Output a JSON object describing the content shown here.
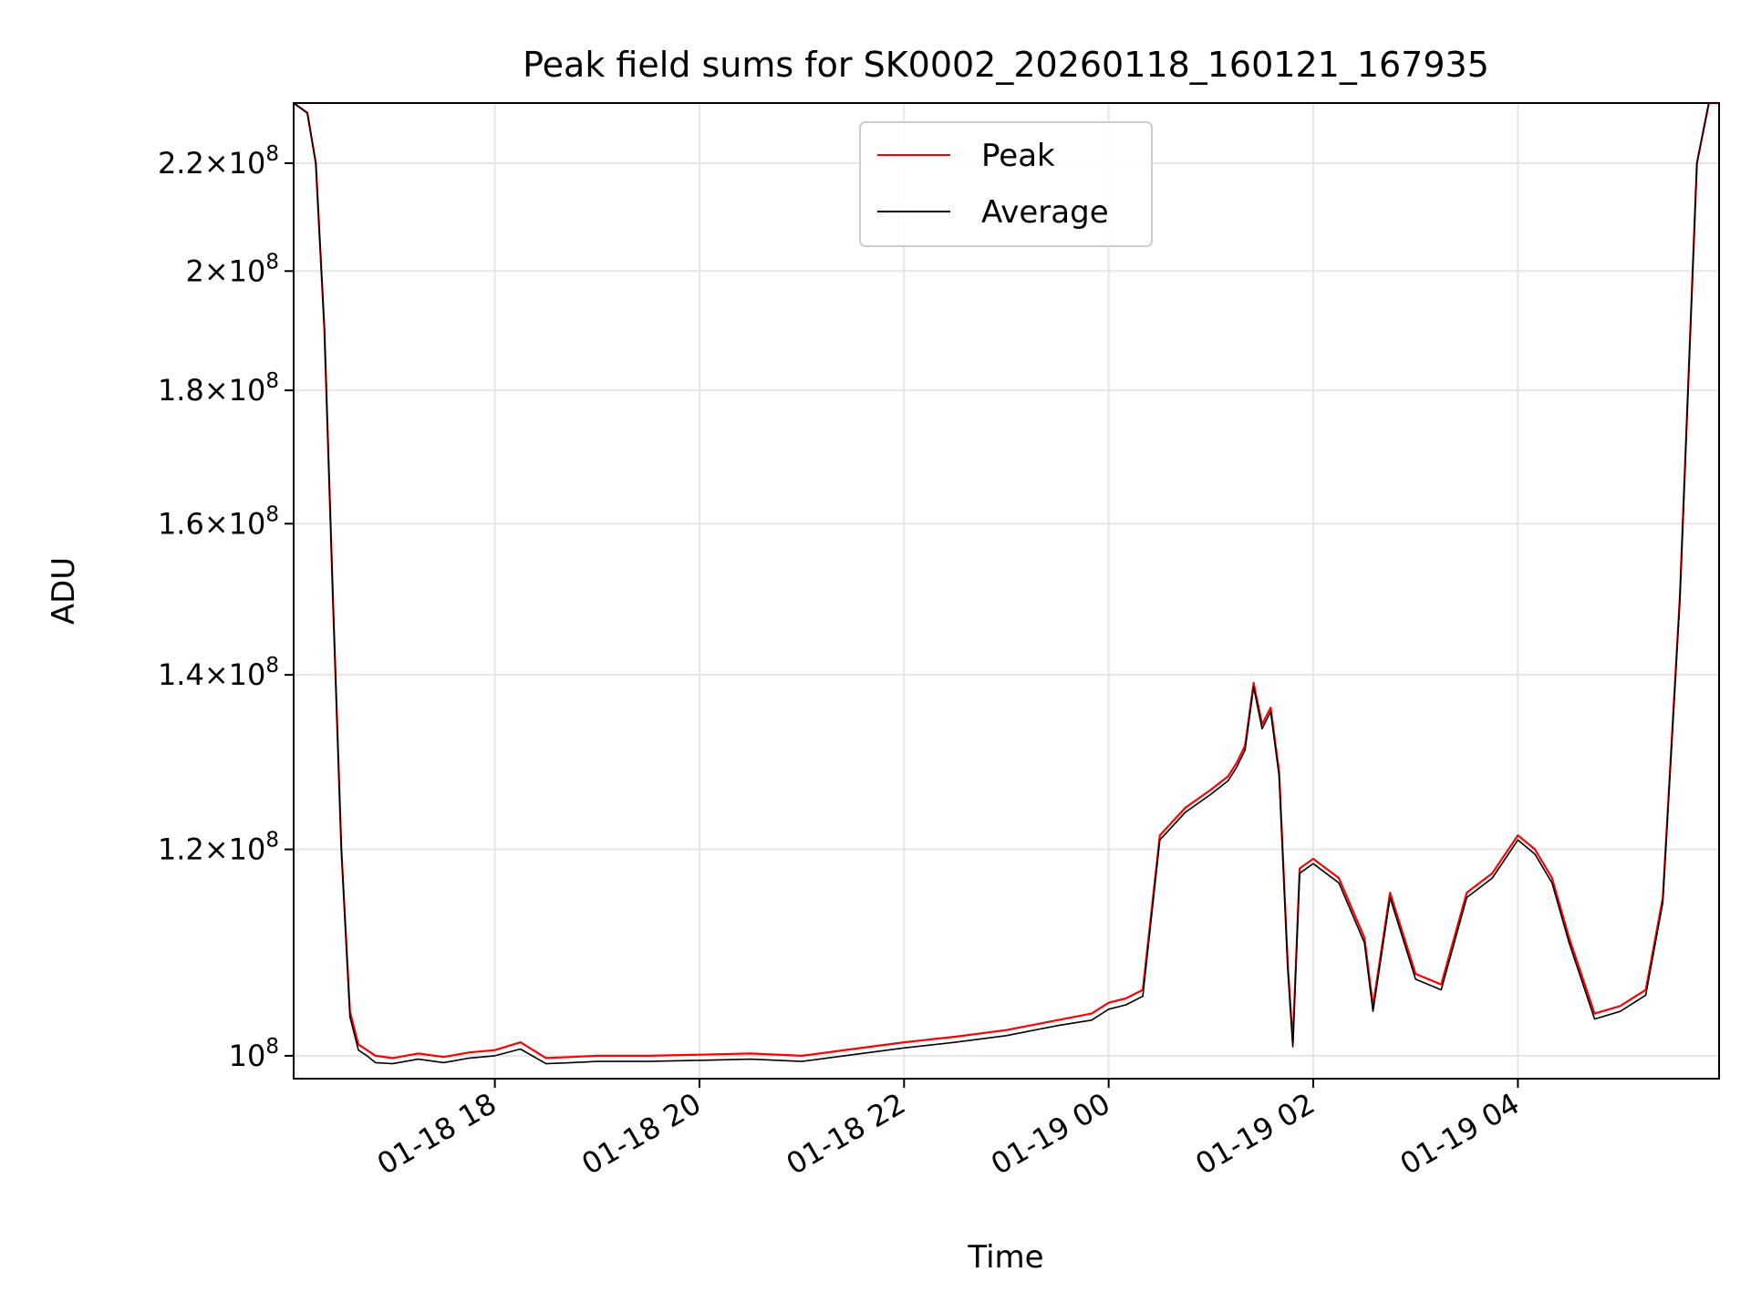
{
  "chart_data": {
    "type": "line",
    "title": "Peak field sums for SK0002_20260118_160121_167935",
    "xlabel": "Time",
    "ylabel": "ADU",
    "y_scale": "log",
    "xlim": [
      "2026-01-18 16:02",
      "2026-01-19 05:58"
    ],
    "ylim": [
      98000000,
      232000000
    ],
    "grid": true,
    "legend_position": "top-center",
    "x_ticks": [
      {
        "t": "2026-01-18 18:00",
        "label": "01-18 18"
      },
      {
        "t": "2026-01-18 20:00",
        "label": "01-18 20"
      },
      {
        "t": "2026-01-18 22:00",
        "label": "01-18 22"
      },
      {
        "t": "2026-01-19 00:00",
        "label": "01-19 00"
      },
      {
        "t": "2026-01-19 02:00",
        "label": "01-19 02"
      },
      {
        "t": "2026-01-19 04:00",
        "label": "01-19 04"
      }
    ],
    "y_ticks": [
      {
        "value": 100000000,
        "mantissa": "",
        "exp": "8"
      },
      {
        "value": 120000000,
        "mantissa": "1.2",
        "exp": "8"
      },
      {
        "value": 140000000,
        "mantissa": "1.4",
        "exp": "8"
      },
      {
        "value": 160000000,
        "mantissa": "1.6",
        "exp": "8"
      },
      {
        "value": 180000000,
        "mantissa": "1.8",
        "exp": "8"
      },
      {
        "value": 200000000,
        "mantissa": "2",
        "exp": "8"
      },
      {
        "value": 220000000,
        "mantissa": "2.2",
        "exp": "8"
      }
    ],
    "series": [
      {
        "name": "Peak",
        "color": "#ff0000",
        "x": [
          "2026-01-18 16:02",
          "2026-01-18 16:10",
          "2026-01-18 16:15",
          "2026-01-18 16:20",
          "2026-01-18 16:25",
          "2026-01-18 16:30",
          "2026-01-18 16:35",
          "2026-01-18 16:40",
          "2026-01-18 16:45",
          "2026-01-18 16:50",
          "2026-01-18 17:00",
          "2026-01-18 17:15",
          "2026-01-18 17:30",
          "2026-01-18 17:45",
          "2026-01-18 18:00",
          "2026-01-18 18:15",
          "2026-01-18 18:30",
          "2026-01-18 18:45",
          "2026-01-18 19:00",
          "2026-01-18 19:30",
          "2026-01-18 20:00",
          "2026-01-18 20:30",
          "2026-01-18 21:00",
          "2026-01-18 21:30",
          "2026-01-18 22:00",
          "2026-01-18 22:30",
          "2026-01-18 23:00",
          "2026-01-18 23:30",
          "2026-01-18 23:50",
          "2026-01-19 00:00",
          "2026-01-19 00:10",
          "2026-01-19 00:20",
          "2026-01-19 00:30",
          "2026-01-19 00:45",
          "2026-01-19 01:00",
          "2026-01-19 01:10",
          "2026-01-19 01:15",
          "2026-01-19 01:20",
          "2026-01-19 01:25",
          "2026-01-19 01:30",
          "2026-01-19 01:35",
          "2026-01-19 01:40",
          "2026-01-19 01:45",
          "2026-01-19 01:48",
          "2026-01-19 01:52",
          "2026-01-19 02:00",
          "2026-01-19 02:15",
          "2026-01-19 02:30",
          "2026-01-19 02:35",
          "2026-01-19 02:45",
          "2026-01-19 03:00",
          "2026-01-19 03:15",
          "2026-01-19 03:30",
          "2026-01-19 03:45",
          "2026-01-19 04:00",
          "2026-01-19 04:10",
          "2026-01-19 04:20",
          "2026-01-19 04:30",
          "2026-01-19 04:45",
          "2026-01-19 05:00",
          "2026-01-19 05:15",
          "2026-01-19 05:25",
          "2026-01-19 05:35",
          "2026-01-19 05:45",
          "2026-01-19 05:52",
          "2026-01-19 05:58"
        ],
        "values": [
          232000000,
          230000000,
          220000000,
          190000000,
          150000000,
          120000000,
          104000000,
          101000000,
          100500000,
          100000000,
          99800000,
          100200000,
          99900000,
          100300000,
          100500000,
          101200000,
          99800000,
          99900000,
          100000000,
          100000000,
          100100000,
          100200000,
          100000000,
          100600000,
          101200000,
          101700000,
          102300000,
          103200000,
          103800000,
          104800000,
          105200000,
          106000000,
          121500000,
          124500000,
          126500000,
          128000000,
          129500000,
          131500000,
          139000000,
          134000000,
          136000000,
          128500000,
          108500000,
          101200000,
          118000000,
          119000000,
          117000000,
          111000000,
          104500000,
          115500000,
          107500000,
          106500000,
          115500000,
          117500000,
          121500000,
          120000000,
          117000000,
          111000000,
          103800000,
          104500000,
          106000000,
          115000000,
          150000000,
          220000000,
          232000000,
          232000000
        ]
      },
      {
        "name": "Average",
        "color": "#000000",
        "x": [
          "2026-01-18 16:02",
          "2026-01-18 16:10",
          "2026-01-18 16:15",
          "2026-01-18 16:20",
          "2026-01-18 16:25",
          "2026-01-18 16:30",
          "2026-01-18 16:35",
          "2026-01-18 16:40",
          "2026-01-18 16:45",
          "2026-01-18 16:50",
          "2026-01-18 17:00",
          "2026-01-18 17:15",
          "2026-01-18 17:30",
          "2026-01-18 17:45",
          "2026-01-18 18:00",
          "2026-01-18 18:15",
          "2026-01-18 18:30",
          "2026-01-18 18:45",
          "2026-01-18 19:00",
          "2026-01-18 19:30",
          "2026-01-18 20:00",
          "2026-01-18 20:30",
          "2026-01-18 21:00",
          "2026-01-18 21:30",
          "2026-01-18 22:00",
          "2026-01-18 22:30",
          "2026-01-18 23:00",
          "2026-01-18 23:30",
          "2026-01-18 23:50",
          "2026-01-19 00:00",
          "2026-01-19 00:10",
          "2026-01-19 00:20",
          "2026-01-19 00:30",
          "2026-01-19 00:45",
          "2026-01-19 01:00",
          "2026-01-19 01:10",
          "2026-01-19 01:15",
          "2026-01-19 01:20",
          "2026-01-19 01:25",
          "2026-01-19 01:30",
          "2026-01-19 01:35",
          "2026-01-19 01:40",
          "2026-01-19 01:45",
          "2026-01-19 01:48",
          "2026-01-19 01:52",
          "2026-01-19 02:00",
          "2026-01-19 02:15",
          "2026-01-19 02:30",
          "2026-01-19 02:35",
          "2026-01-19 02:45",
          "2026-01-19 03:00",
          "2026-01-19 03:15",
          "2026-01-19 03:30",
          "2026-01-19 03:45",
          "2026-01-19 04:00",
          "2026-01-19 04:10",
          "2026-01-19 04:20",
          "2026-01-19 04:30",
          "2026-01-19 04:45",
          "2026-01-19 05:00",
          "2026-01-19 05:15",
          "2026-01-19 05:25",
          "2026-01-19 05:35",
          "2026-01-19 05:45",
          "2026-01-19 05:52",
          "2026-01-19 05:58"
        ],
        "values": [
          232000000,
          230000000,
          220000000,
          190000000,
          150000000,
          120000000,
          103500000,
          100500000,
          100000000,
          99400000,
          99300000,
          99700000,
          99400000,
          99800000,
          100000000,
          100600000,
          99300000,
          99400000,
          99500000,
          99500000,
          99600000,
          99700000,
          99500000,
          100100000,
          100700000,
          101200000,
          101800000,
          102700000,
          103200000,
          104200000,
          104600000,
          105400000,
          121000000,
          124000000,
          126000000,
          127500000,
          129000000,
          131000000,
          138500000,
          133500000,
          135500000,
          128000000,
          108000000,
          100800000,
          117500000,
          118500000,
          116500000,
          110500000,
          104000000,
          115000000,
          107000000,
          106000000,
          115000000,
          117000000,
          121000000,
          119500000,
          116500000,
          110500000,
          103300000,
          104000000,
          105500000,
          114500000,
          149500000,
          220000000,
          232000000,
          232000000
        ]
      }
    ]
  }
}
